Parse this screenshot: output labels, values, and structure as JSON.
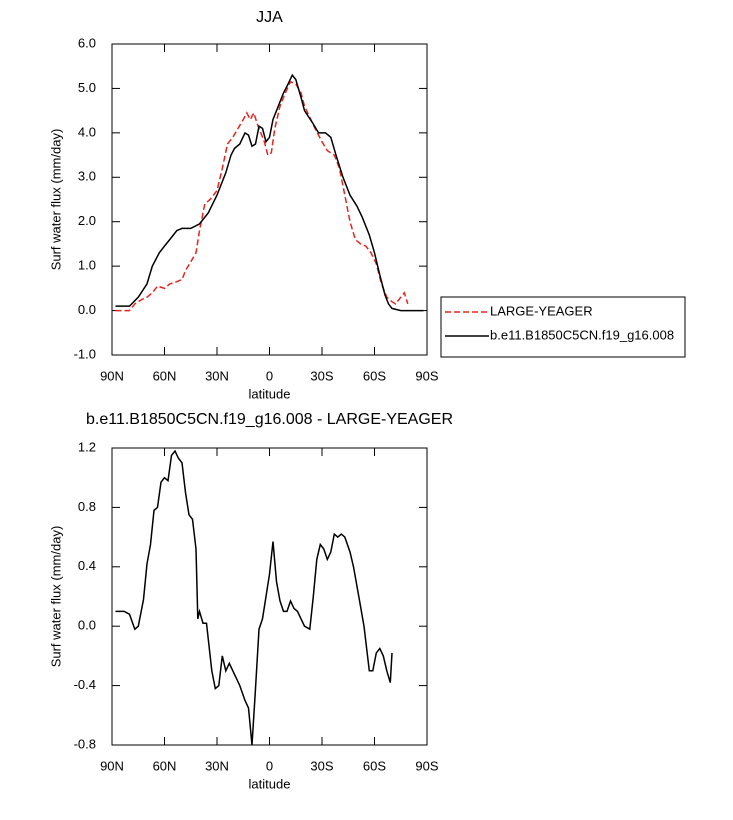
{
  "chart_data": [
    {
      "type": "line",
      "title": "JJA",
      "xlabel": "latitude",
      "ylabel": "Surf water flux (mm/day)",
      "xlim": [
        90,
        -90
      ],
      "xticks": [
        {
          "value": 90,
          "label": "90N"
        },
        {
          "value": 60,
          "label": "60N"
        },
        {
          "value": 30,
          "label": "30N"
        },
        0,
        {
          "value": -30,
          "label": "30S"
        },
        {
          "value": -60,
          "label": "60S"
        },
        {
          "value": -90,
          "label": "90S"
        }
      ],
      "ylim": [
        -1,
        6
      ],
      "yticks": [
        {
          "value": -1,
          "label": "-1.0"
        },
        {
          "value": 0,
          "label": "0.0"
        },
        {
          "value": 1,
          "label": "1.0"
        },
        {
          "value": 2,
          "label": "2.0"
        },
        {
          "value": 3,
          "label": "3.0"
        },
        {
          "value": 4,
          "label": "4.0"
        },
        {
          "value": 5,
          "label": "5.0"
        },
        {
          "value": 6,
          "label": "6.0"
        }
      ],
      "legend": "right",
      "series": [
        {
          "name": "LARGE-YEAGER",
          "color": "#e8231f",
          "dash": true,
          "x": [
            88,
            80,
            77,
            73,
            70,
            67,
            64,
            60,
            57,
            53,
            50,
            48,
            45,
            42,
            40,
            37,
            34,
            30,
            27,
            24,
            21,
            18,
            15,
            13,
            11,
            9,
            7,
            5,
            3,
            1,
            -1,
            -3,
            -6,
            -9,
            -12,
            -15,
            -18,
            -20,
            -23,
            -26,
            -30,
            -33,
            -37,
            -40,
            -43,
            -46,
            -49,
            -52,
            -55,
            -58,
            -61,
            -64,
            -67,
            -70,
            -72,
            -75,
            -77,
            -79
          ],
          "values": [
            0.0,
            0.0,
            0.15,
            0.25,
            0.3,
            0.4,
            0.55,
            0.5,
            0.6,
            0.65,
            0.7,
            0.9,
            1.1,
            1.3,
            1.8,
            2.4,
            2.5,
            2.7,
            3.2,
            3.75,
            3.9,
            4.1,
            4.3,
            4.45,
            4.3,
            4.45,
            4.2,
            4.0,
            3.8,
            3.5,
            3.55,
            4.1,
            4.6,
            4.9,
            5.15,
            5.1,
            4.9,
            4.6,
            4.35,
            4.1,
            3.8,
            3.6,
            3.5,
            3.2,
            2.6,
            2.0,
            1.6,
            1.5,
            1.45,
            1.3,
            1.05,
            0.6,
            0.3,
            0.2,
            0.15,
            0.3,
            0.4,
            0.15
          ]
        },
        {
          "name": "b.e11.B1850C5CN.f19_g16.008",
          "color": "#000000",
          "dash": false,
          "x": [
            88,
            80,
            75,
            70,
            67,
            63,
            60,
            57,
            53,
            50,
            45,
            40,
            35,
            30,
            25,
            22,
            20,
            17,
            14,
            12,
            10,
            8,
            6,
            4,
            2,
            0,
            -2,
            -5,
            -8,
            -10,
            -13,
            -15,
            -18,
            -20,
            -25,
            -28,
            -32,
            -35,
            -38,
            -42,
            -46,
            -50,
            -53,
            -57,
            -60,
            -63,
            -66,
            -68,
            -70,
            -75,
            -80,
            -85,
            -88
          ],
          "values": [
            0.1,
            0.1,
            0.3,
            0.6,
            1.0,
            1.3,
            1.45,
            1.6,
            1.8,
            1.85,
            1.85,
            1.95,
            2.2,
            2.6,
            3.1,
            3.5,
            3.65,
            3.75,
            4.0,
            3.95,
            3.7,
            3.75,
            4.15,
            4.1,
            3.8,
            3.9,
            4.3,
            4.6,
            4.9,
            5.05,
            5.3,
            5.2,
            4.8,
            4.5,
            4.2,
            4.0,
            4.0,
            3.9,
            3.5,
            3.0,
            2.6,
            2.35,
            2.1,
            1.7,
            1.3,
            0.8,
            0.35,
            0.15,
            0.05,
            0.0,
            0.0,
            0.0,
            0.0
          ]
        }
      ]
    },
    {
      "type": "line",
      "title": "b.e11.B1850C5CN.f19_g16.008 - LARGE-YEAGER",
      "xlabel": "latitude",
      "ylabel": "Surf water flux (mm/day)",
      "xlim": [
        90,
        -90
      ],
      "xticks": [
        {
          "value": 90,
          "label": "90N"
        },
        {
          "value": 60,
          "label": "60N"
        },
        {
          "value": 30,
          "label": "30N"
        },
        0,
        {
          "value": -30,
          "label": "30S"
        },
        {
          "value": -60,
          "label": "60S"
        },
        {
          "value": -90,
          "label": "90S"
        }
      ],
      "ylim": [
        -0.8,
        1.2
      ],
      "yticks": [
        -0.8,
        -0.4,
        {
          "value": 0,
          "label": "0.0"
        },
        0.4,
        0.8,
        1.2
      ],
      "series": [
        {
          "color": "#000000",
          "dash": false,
          "x": [
            88,
            83,
            80,
            77,
            75,
            72,
            70,
            68,
            66,
            64,
            62,
            60,
            58,
            56,
            54,
            52,
            50,
            48,
            46,
            44,
            42,
            41,
            40,
            38,
            36,
            33,
            31,
            29,
            27,
            25,
            23,
            21,
            19,
            17,
            14,
            12,
            10,
            8,
            6,
            4,
            2,
            0,
            -2,
            -4,
            -6,
            -8,
            -10,
            -12,
            -14,
            -16,
            -18,
            -20,
            -23,
            -25,
            -27,
            -29,
            -31,
            -33,
            -35,
            -37,
            -39,
            -41,
            -43,
            -46,
            -48,
            -51,
            -54,
            -57,
            -59,
            -61,
            -63,
            -65,
            -67,
            -69,
            -70
          ],
          "values": [
            0.1,
            0.1,
            0.08,
            -0.02,
            0.0,
            0.18,
            0.42,
            0.55,
            0.78,
            0.8,
            0.97,
            1.0,
            0.98,
            1.15,
            1.18,
            1.13,
            1.1,
            0.9,
            0.75,
            0.72,
            0.52,
            0.05,
            0.1,
            0.02,
            0.02,
            -0.3,
            -0.42,
            -0.4,
            -0.2,
            -0.3,
            -0.25,
            -0.3,
            -0.35,
            -0.4,
            -0.5,
            -0.55,
            -0.8,
            -0.42,
            -0.02,
            0.05,
            0.2,
            0.35,
            0.57,
            0.3,
            0.17,
            0.1,
            0.1,
            0.17,
            0.12,
            0.1,
            0.05,
            0.0,
            -0.02,
            0.2,
            0.45,
            0.55,
            0.52,
            0.45,
            0.5,
            0.62,
            0.6,
            0.62,
            0.6,
            0.5,
            0.4,
            0.2,
            0.0,
            -0.3,
            -0.3,
            -0.18,
            -0.15,
            -0.2,
            -0.3,
            -0.38,
            -0.18
          ]
        }
      ]
    }
  ]
}
